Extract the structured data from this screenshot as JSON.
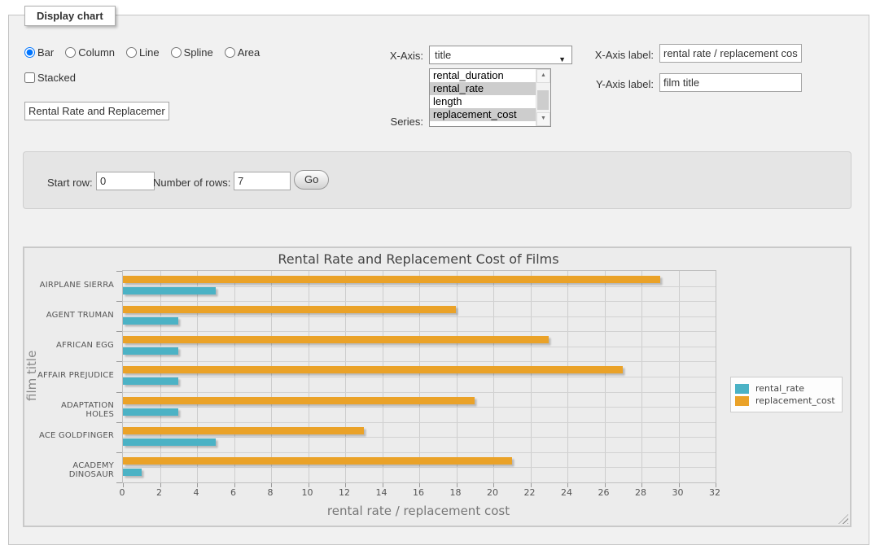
{
  "panel": {
    "legend": "Display chart"
  },
  "controls": {
    "chart_types": [
      {
        "label": "Bar",
        "selected": true
      },
      {
        "label": "Column",
        "selected": false
      },
      {
        "label": "Line",
        "selected": false
      },
      {
        "label": "Spline",
        "selected": false
      },
      {
        "label": "Area",
        "selected": false
      }
    ],
    "stacked": {
      "label": "Stacked",
      "checked": false
    },
    "title_input": {
      "value": "Rental Rate and Replacemer"
    },
    "x_axis": {
      "label": "X-Axis:",
      "selected": "title",
      "arrow_icon": "▼"
    },
    "series": {
      "label": "Series:",
      "options": [
        {
          "label": "rental_duration",
          "selected": false
        },
        {
          "label": "rental_rate",
          "selected": true
        },
        {
          "label": "length",
          "selected": false
        },
        {
          "label": "replacement_cost",
          "selected": true
        }
      ],
      "scroll_up_icon": "▲",
      "scroll_down_icon": "▼"
    },
    "x_axis_label": {
      "label": "X-Axis label:",
      "value": "rental rate / replacement cost"
    },
    "y_axis_label": {
      "label": "Y-Axis label:",
      "value": "film title"
    }
  },
  "row_controls": {
    "start_row_label": "Start row:",
    "start_row_value": "0",
    "num_rows_label": "Number of rows:",
    "num_rows_value": "7",
    "go_label": "Go"
  },
  "chart_data": {
    "type": "bar",
    "orientation": "horizontal",
    "title": "Rental Rate and Replacement Cost of Films",
    "xlabel": "rental rate / replacement cost",
    "ylabel": "film title",
    "categories": [
      "AIRPLANE SIERRA",
      "AGENT TRUMAN",
      "AFRICAN EGG",
      "AFFAIR PREJUDICE",
      "ADAPTATION HOLES",
      "ACE GOLDFINGER",
      "ACADEMY DINOSAUR"
    ],
    "series": [
      {
        "name": "rental_rate",
        "color": "#4bb2c5",
        "values": [
          4.99,
          2.99,
          2.99,
          2.99,
          2.99,
          4.99,
          0.99
        ]
      },
      {
        "name": "replacement_cost",
        "color": "#eaa228",
        "values": [
          28.99,
          17.99,
          22.99,
          26.99,
          18.99,
          12.99,
          20.99
        ]
      }
    ],
    "bar_order_top_to_bottom": [
      "replacement_cost",
      "rental_rate"
    ],
    "xlim": [
      0,
      32
    ],
    "xticks": [
      0,
      2,
      4,
      6,
      8,
      10,
      12,
      14,
      16,
      18,
      20,
      22,
      24,
      26,
      28,
      30,
      32
    ],
    "grid": true,
    "legend_position": "right"
  }
}
